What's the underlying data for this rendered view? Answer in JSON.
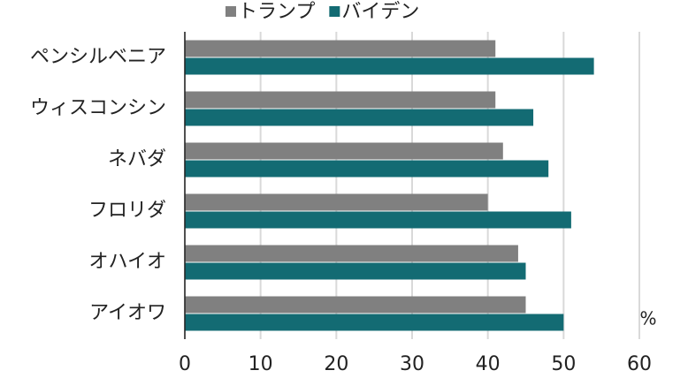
{
  "chart_data": {
    "type": "hbar",
    "categories": [
      "ペンシルベニア",
      "ウィスコンシン",
      "ネバダ",
      "フロリダ",
      "オハイオ",
      "アイオワ"
    ],
    "series": [
      {
        "name": "トランプ",
        "color": "#808080",
        "values": [
          41,
          41,
          42,
          40,
          44,
          45
        ]
      },
      {
        "name": "バイデン",
        "color": "#136b73",
        "values": [
          54,
          46,
          48,
          51,
          45,
          50
        ]
      }
    ],
    "xlim": [
      0,
      60
    ],
    "xticks": [
      0,
      10,
      20,
      30,
      40,
      50,
      60
    ],
    "grid": true,
    "unit": "%"
  }
}
